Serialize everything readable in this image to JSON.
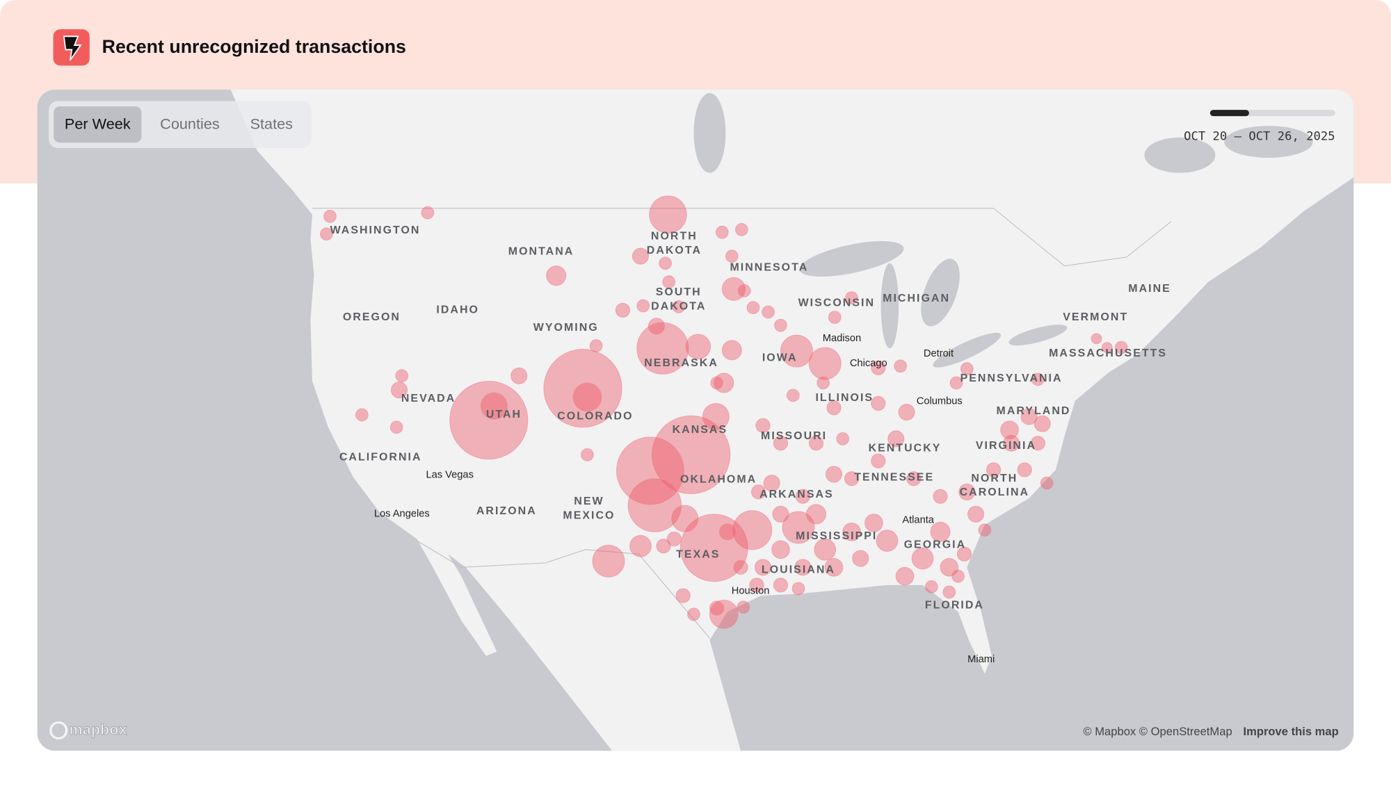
{
  "header": {
    "title": "Recent unrecognized transactions"
  },
  "tabs": [
    "Per Week",
    "Counties",
    "States"
  ],
  "active_tab": "Per Week",
  "date_range": "OCT 20 – OCT 26, 2025",
  "map": {
    "states": [
      "WASHINGTON",
      "MONTANA",
      "NORTH DAKOTA",
      "MINNESOTA",
      "OREGON",
      "IDAHO",
      "WYOMING",
      "SOUTH DAKOTA",
      "WISCONSIN",
      "MICHIGAN",
      "MAINE",
      "VERMONT",
      "MASSACHUSETTS",
      "NEBRASKA",
      "IOWA",
      "PENNSYLVANIA",
      "NEVADA",
      "UTAH",
      "COLORADO",
      "ILLINOIS",
      "MARYLAND",
      "KANSAS",
      "MISSOURI",
      "KENTUCKY",
      "VIRGINIA",
      "CALIFORNIA",
      "OKLAHOMA",
      "TENNESSEE",
      "NORTH CAROLINA",
      "ARKANSAS",
      "NEW MEXICO",
      "ARIZONA",
      "MISSISSIPPI",
      "GEORGIA",
      "TEXAS",
      "LOUISIANA",
      "FLORIDA"
    ],
    "cities": [
      "Madison",
      "Chicago",
      "Detroit",
      "Columbus",
      "Las Vegas",
      "Los Angeles",
      "Atlanta",
      "Houston",
      "Miami"
    ],
    "bubble_counts": [
      400,
      46,
      400,
      53,
      400,
      298,
      186,
      298,
      46,
      91,
      174,
      40,
      67,
      67,
      46,
      67,
      53,
      35,
      25,
      17,
      100,
      67,
      30,
      30,
      30,
      30,
      25,
      25,
      25,
      25,
      21,
      21,
      21,
      21,
      21,
      21,
      21,
      17,
      17,
      17,
      17,
      17,
      17,
      17,
      17,
      17,
      17,
      17,
      17,
      17,
      17,
      17,
      17,
      17,
      13,
      13,
      13,
      13,
      13,
      13,
      13,
      13,
      13,
      13,
      13,
      13,
      13,
      13,
      13,
      13,
      13,
      13,
      13,
      13,
      13,
      13,
      13,
      13,
      10,
      10,
      10,
      10,
      10,
      10,
      10,
      10,
      10,
      10,
      10,
      10,
      10,
      10,
      10,
      10,
      10,
      10,
      10,
      10,
      10,
      10,
      10,
      10,
      10,
      10,
      10,
      10,
      10,
      10,
      10,
      10,
      10,
      10,
      10,
      10,
      10,
      10,
      7,
      7
    ]
  },
  "attribution": {
    "logo": "mapbox",
    "credits": "© Mapbox © OpenStreetMap",
    "link": "Improve this map"
  }
}
